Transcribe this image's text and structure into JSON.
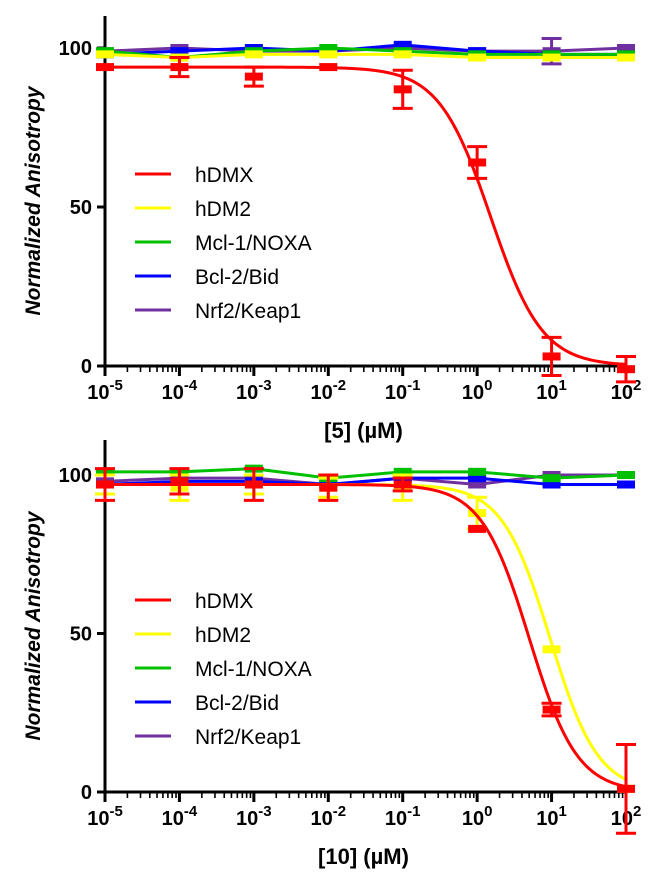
{
  "chart_data": [
    {
      "type": "line",
      "title": "",
      "xlabel": "[5] (µM)",
      "ylabel": "Normalized Anisotropy",
      "x_scale": "log",
      "xlim_exponents": [
        -5,
        2
      ],
      "ylim": [
        0,
        110
      ],
      "yticks": [
        "0",
        "50",
        "100"
      ],
      "xticks": [
        "10",
        "10",
        "10",
        "10",
        "10",
        "10",
        "10",
        "10"
      ],
      "xtick_exponents": [
        "-5",
        "-4",
        "-3",
        "-2",
        "-1",
        "0",
        "1",
        "2"
      ],
      "legend": {
        "position": "lower-left"
      },
      "x": [
        1e-05,
        0.0001,
        0.001,
        0.01,
        0.1,
        1,
        10,
        100
      ],
      "series": [
        {
          "name": "hDMX",
          "color": "#ff0000",
          "values": [
            94,
            94,
            91,
            94,
            87,
            64,
            3,
            -1
          ],
          "errors": [
            0,
            3,
            3,
            1,
            6,
            5,
            6,
            4
          ],
          "fit": {
            "top": 94,
            "bottom": 0,
            "log_ic50": 0.18,
            "hill": 1.25
          }
        },
        {
          "name": "hDM2",
          "color": "#ffff00",
          "values": [
            98,
            97,
            98,
            98,
            98,
            97,
            97,
            97
          ],
          "errors": [
            1,
            1,
            1,
            1,
            1,
            1,
            1,
            1
          ]
        },
        {
          "name": "Mcl-1/NOXA",
          "color": "#00c000",
          "values": [
            99,
            97,
            99,
            100,
            99,
            98,
            98,
            98
          ],
          "errors": [
            1,
            1,
            1,
            1,
            1,
            1,
            1,
            1
          ]
        },
        {
          "name": "Bcl-2/Bid",
          "color": "#0000ff",
          "values": [
            98,
            99,
            100,
            99,
            101,
            99,
            98,
            98
          ],
          "errors": [
            1,
            1,
            1,
            1,
            1,
            1,
            1,
            1
          ]
        },
        {
          "name": "Nrf2/Keap1",
          "color": "#7030a0",
          "values": [
            99,
            100,
            99,
            99,
            100,
            99,
            99,
            100
          ],
          "errors": [
            1,
            1,
            1,
            1,
            1,
            1,
            4,
            1
          ]
        }
      ]
    },
    {
      "type": "line",
      "title": "",
      "xlabel": "[10] (µM)",
      "ylabel": "Normalized Anisotropy",
      "x_scale": "log",
      "xlim_exponents": [
        -5,
        2
      ],
      "ylim": [
        0,
        110
      ],
      "yticks": [
        "0",
        "50",
        "100"
      ],
      "xticks": [
        "10",
        "10",
        "10",
        "10",
        "10",
        "10",
        "10",
        "10"
      ],
      "xtick_exponents": [
        "-5",
        "-4",
        "-3",
        "-2",
        "-1",
        "0",
        "1",
        "2"
      ],
      "legend": {
        "position": "lower-left"
      },
      "x": [
        1e-05,
        0.0001,
        0.001,
        0.01,
        0.1,
        1,
        10,
        100
      ],
      "series": [
        {
          "name": "hDMX",
          "color": "#ff0000",
          "values": [
            97,
            98,
            97,
            96,
            97,
            83,
            26,
            1
          ],
          "errors": [
            5,
            4,
            5,
            4,
            2,
            1,
            2,
            14
          ],
          "fit": {
            "top": 97,
            "bottom": 0,
            "log_ic50": 0.7,
            "hill": 1.35
          }
        },
        {
          "name": "hDM2",
          "color": "#ffff00",
          "values": [
            97,
            96,
            97,
            96,
            96,
            88,
            45,
            1
          ],
          "errors": [
            3,
            4,
            3,
            3,
            4,
            5,
            1,
            1
          ],
          "fit": {
            "top": 97,
            "bottom": 0,
            "log_ic50": 0.98,
            "hill": 1.35
          }
        },
        {
          "name": "Mcl-1/NOXA",
          "color": "#00c000",
          "values": [
            101,
            101,
            102,
            99,
            101,
            101,
            99,
            100
          ],
          "errors": [
            1,
            1,
            1,
            1,
            1,
            1,
            1,
            1
          ]
        },
        {
          "name": "Bcl-2/Bid",
          "color": "#0000ff",
          "values": [
            97,
            98,
            98,
            97,
            99,
            99,
            97,
            97
          ],
          "errors": [
            1,
            1,
            1,
            1,
            1,
            1,
            1,
            1
          ]
        },
        {
          "name": "Nrf2/Keap1",
          "color": "#7030a0",
          "values": [
            98,
            99,
            99,
            97,
            99,
            97,
            100,
            100
          ],
          "errors": [
            1,
            1,
            1,
            1,
            1,
            1,
            1,
            1
          ]
        }
      ]
    }
  ]
}
